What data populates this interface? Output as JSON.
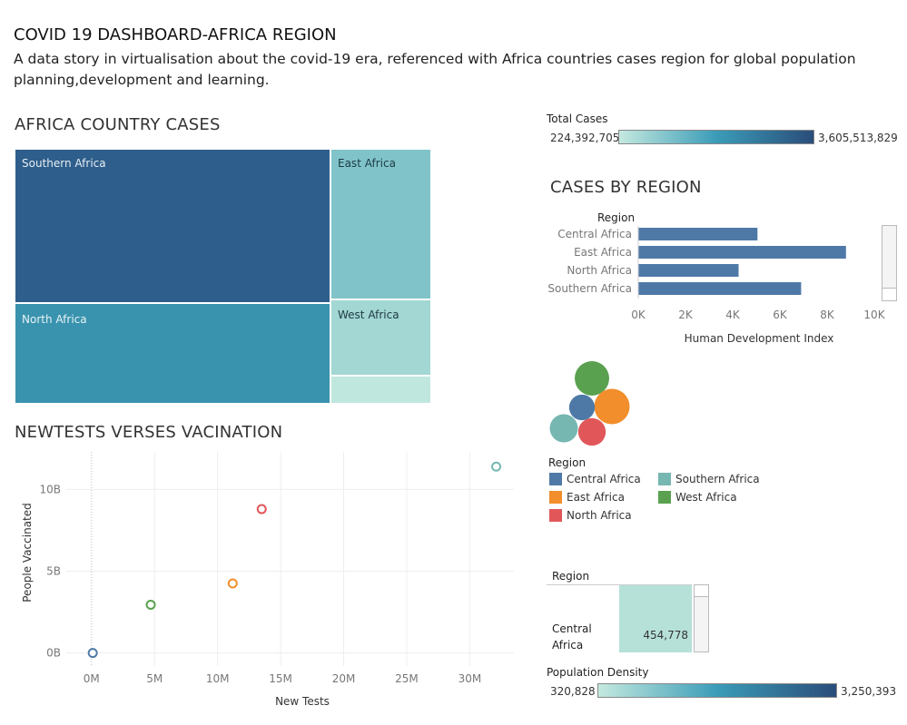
{
  "header": {
    "title": "COVID 19 DASHBOARD-AFRICA REGION",
    "subtitle": "A data story in virtualisation about the covid-19 era, referenced with Africa countries cases region for global population planning,development and learning."
  },
  "treemap": {
    "title": "AFRICA COUNTRY CASES",
    "cells": [
      {
        "label": "Southern Africa",
        "color": "#2e5e8b",
        "text_color": "#e6eef5"
      },
      {
        "label": "North Africa",
        "color": "#3a93ae",
        "text_color": "#e6f3f6"
      },
      {
        "label": "East Africa",
        "color": "#80c4ca",
        "text_color": "#1d3a44"
      },
      {
        "label": "West Africa",
        "color": "#a2d7d3",
        "text_color": "#1d3a44"
      },
      {
        "label": "",
        "color": "#c0e7de",
        "text_color": "#1d3a44"
      }
    ]
  },
  "total_cases_legend": {
    "title": "Total Cases",
    "min": "224,392,705",
    "max": "3,605,513,829"
  },
  "bar_chart": {
    "title": "CASES BY REGION",
    "dimension_label": "Region",
    "xlabel": "Human Development Index",
    "ticks": [
      "0K",
      "2K",
      "4K",
      "6K",
      "8K",
      "10K"
    ]
  },
  "scatter": {
    "title": "NEWTESTS VERSES VACINATION",
    "xlabel": "New Tests",
    "ylabel": "People Vaccinated",
    "xticks": [
      "0M",
      "5M",
      "10M",
      "15M",
      "20M",
      "25M",
      "30M"
    ],
    "yticks": [
      "0B",
      "5B",
      "10B"
    ]
  },
  "region_legend": {
    "title": "Region",
    "items": [
      {
        "label": "Central Africa",
        "color": "#4e79a7"
      },
      {
        "label": "Southern Africa",
        "color": "#76b7b2"
      },
      {
        "label": "East Africa",
        "color": "#f28e2b"
      },
      {
        "label": "West Africa",
        "color": "#59a14f"
      },
      {
        "label": "North Africa",
        "color": "#e15759"
      }
    ]
  },
  "density_table": {
    "header": "Region",
    "row_label": "Central Africa",
    "value": "454,778",
    "cell_color": "#b5e1d9"
  },
  "density_legend": {
    "title": "Population Density",
    "min": "320,828",
    "max": "3,250,393"
  },
  "chart_data": [
    {
      "type": "bar",
      "title": "CASES BY REGION",
      "categories": [
        "Central Africa",
        "East Africa",
        "North Africa",
        "Southern Africa"
      ],
      "values": [
        5050,
        8800,
        4250,
        6900
      ],
      "xlabel": "Human Development Index",
      "ylabel": "Region",
      "xlim": [
        0,
        10000
      ],
      "color": "#4e79a7"
    },
    {
      "type": "scatter",
      "title": "NEWTESTS VERSES VACINATION",
      "xlabel": "New Tests",
      "ylabel": "People Vaccinated",
      "xlim": [
        -2000000,
        33500000
      ],
      "ylim": [
        -800000000,
        12300000000
      ],
      "points": [
        {
          "region": "Central Africa",
          "x": 100000,
          "y": 0,
          "color": "#4e79a7"
        },
        {
          "region": "West Africa",
          "x": 4700000,
          "y": 2950000000,
          "color": "#59a14f"
        },
        {
          "region": "East Africa",
          "x": 11200000,
          "y": 4250000000,
          "color": "#f28e2b"
        },
        {
          "region": "North Africa",
          "x": 13500000,
          "y": 8800000000,
          "color": "#e15759"
        },
        {
          "region": "Southern Africa",
          "x": 32100000,
          "y": 11400000000,
          "color": "#76b7b2"
        }
      ]
    },
    {
      "type": "bubble",
      "title": "",
      "bubbles": [
        {
          "region": "West Africa",
          "size": 360,
          "color": "#59a14f"
        },
        {
          "region": "East Africa",
          "size": 380,
          "color": "#f28e2b"
        },
        {
          "region": "Central Africa",
          "size": 200,
          "color": "#4e79a7"
        },
        {
          "region": "Southern Africa",
          "size": 240,
          "color": "#76b7b2"
        },
        {
          "region": "North Africa",
          "size": 230,
          "color": "#e15759"
        }
      ]
    }
  ]
}
